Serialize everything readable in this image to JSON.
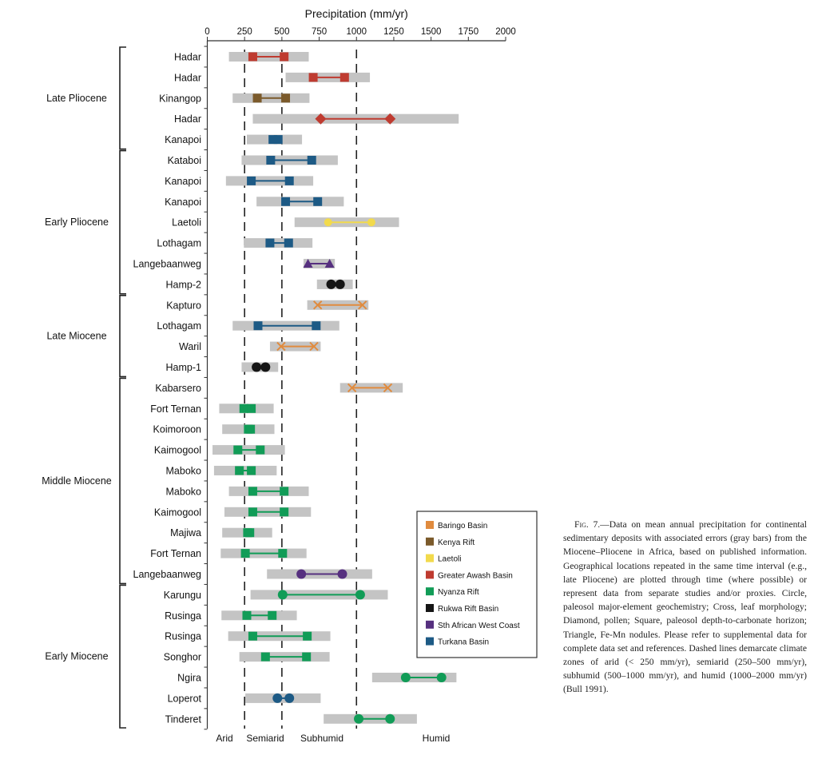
{
  "chart_data": {
    "type": "range-dot",
    "title": "Precipitation (mm/yr)",
    "xlabel": "Precipitation (mm/yr)",
    "xlim": [
      0,
      2000
    ],
    "xticks": [
      0,
      250,
      500,
      750,
      1000,
      1250,
      1500,
      1750,
      2000
    ],
    "xtick_labels": [
      "0",
      "250",
      "500",
      "750",
      "1000",
      "1250",
      "1500",
      "1750",
      "2000"
    ],
    "thresholds": [
      250,
      500,
      1000
    ],
    "zones": [
      "Arid",
      "Semiarid",
      "Subhumid",
      "Humid"
    ],
    "groups": [
      {
        "label": "Late Pliocene",
        "rows": [
          0,
          4
        ]
      },
      {
        "label": "Early Pliocene",
        "rows": [
          5,
          11
        ]
      },
      {
        "label": "Late Miocene",
        "rows": [
          12,
          15
        ]
      },
      {
        "label": "Middle Miocene",
        "rows": [
          16,
          25
        ]
      },
      {
        "label": "Early Miocene",
        "rows": [
          26,
          32
        ]
      }
    ],
    "legend": [
      {
        "name": "Baringo Basin",
        "color": "#e08b3e"
      },
      {
        "name": "Kenya Rift",
        "color": "#7b5a2b"
      },
      {
        "name": "Laetoli",
        "color": "#f2da4c"
      },
      {
        "name": "Greater Awash Basin",
        "color": "#bf3b30"
      },
      {
        "name": "Nyanza Rift",
        "color": "#119c57"
      },
      {
        "name": "Rukwa Rift Basin",
        "color": "#151515"
      },
      {
        "name": "Sth African West Coast",
        "color": "#56307f"
      },
      {
        "name": "Turkana Basin",
        "color": "#1d5a85"
      }
    ],
    "legend_position": "bottom-right",
    "rows": [
      {
        "site": "Hadar",
        "basin": 3,
        "marker": "square",
        "range": [
          145,
          680
        ],
        "points": [
          305,
          515
        ]
      },
      {
        "site": "Hadar",
        "basin": 3,
        "marker": "square",
        "range": [
          525,
          1090
        ],
        "points": [
          710,
          920
        ]
      },
      {
        "site": "Kinangop",
        "basin": 1,
        "marker": "square",
        "range": [
          170,
          685
        ],
        "points": [
          335,
          525
        ]
      },
      {
        "site": "Hadar",
        "basin": 3,
        "marker": "diamond",
        "range": [
          305,
          1685
        ],
        "points": [
          760,
          1225
        ]
      },
      {
        "site": "Kanapoi",
        "basin": 7,
        "marker": "square",
        "range": [
          265,
          635
        ],
        "points": [
          440,
          475
        ]
      },
      {
        "site": "Kataboi",
        "basin": 7,
        "marker": "square",
        "range": [
          230,
          875
        ],
        "points": [
          425,
          700
        ]
      },
      {
        "site": "Kanapoi",
        "basin": 7,
        "marker": "square",
        "range": [
          125,
          710
        ],
        "points": [
          295,
          550
        ]
      },
      {
        "site": "Kanapoi",
        "basin": 7,
        "marker": "square",
        "range": [
          330,
          915
        ],
        "points": [
          525,
          740
        ]
      },
      {
        "site": "Laetoli",
        "basin": 2,
        "marker": "circle-small",
        "range": [
          585,
          1285
        ],
        "points": [
          810,
          1100
        ]
      },
      {
        "site": "Lothagam",
        "basin": 7,
        "marker": "square",
        "range": [
          245,
          705
        ],
        "points": [
          420,
          545
        ]
      },
      {
        "site": "Langebaanweg",
        "basin": 6,
        "marker": "triangle",
        "range": [
          645,
          855
        ],
        "points": [
          675,
          820
        ]
      },
      {
        "site": "Hamp-2",
        "basin": 5,
        "marker": "circle",
        "range": [
          735,
          975
        ],
        "points": [
          830,
          890
        ]
      },
      {
        "site": "Kapturo",
        "basin": 0,
        "marker": "cross",
        "range": [
          670,
          1080
        ],
        "points": [
          740,
          1040
        ]
      },
      {
        "site": "Lothagam",
        "basin": 7,
        "marker": "square",
        "range": [
          170,
          885
        ],
        "points": [
          340,
          730
        ]
      },
      {
        "site": "Waril",
        "basin": 0,
        "marker": "cross",
        "range": [
          420,
          760
        ],
        "points": [
          495,
          715
        ]
      },
      {
        "site": "Hamp-1",
        "basin": 5,
        "marker": "circle",
        "range": [
          230,
          475
        ],
        "points": [
          330,
          390
        ]
      },
      {
        "site": "Kabarsero",
        "basin": 0,
        "marker": "cross",
        "range": [
          890,
          1310
        ],
        "points": [
          970,
          1210
        ]
      },
      {
        "site": "Fort Ternan",
        "basin": 4,
        "marker": "square",
        "range": [
          80,
          445
        ],
        "points": [
          245,
          295
        ]
      },
      {
        "site": "Koimoroon",
        "basin": 4,
        "marker": "square",
        "range": [
          100,
          450
        ],
        "points": [
          275,
          290
        ]
      },
      {
        "site": "Kaimogool",
        "basin": 4,
        "marker": "square",
        "range": [
          35,
          520
        ],
        "points": [
          205,
          355
        ]
      },
      {
        "site": "Maboko",
        "basin": 4,
        "marker": "square",
        "range": [
          45,
          465
        ],
        "points": [
          215,
          295
        ]
      },
      {
        "site": "Maboko",
        "basin": 4,
        "marker": "square",
        "range": [
          145,
          680
        ],
        "points": [
          305,
          515
        ]
      },
      {
        "site": "Kaimogool",
        "basin": 4,
        "marker": "square",
        "range": [
          115,
          695
        ],
        "points": [
          305,
          515
        ]
      },
      {
        "site": "Majiwa",
        "basin": 4,
        "marker": "square",
        "range": [
          100,
          435
        ],
        "points": [
          270,
          285
        ]
      },
      {
        "site": "Fort Ternan",
        "basin": 4,
        "marker": "square",
        "range": [
          90,
          665
        ],
        "points": [
          255,
          505
        ]
      },
      {
        "site": "Langebaanweg",
        "basin": 6,
        "marker": "circle",
        "range": [
          400,
          1105
        ],
        "points": [
          630,
          905
        ]
      },
      {
        "site": "Karungu",
        "basin": 4,
        "marker": "circle",
        "range": [
          290,
          1210
        ],
        "points": [
          505,
          1025
        ]
      },
      {
        "site": "Rusinga",
        "basin": 4,
        "marker": "square",
        "range": [
          95,
          600
        ],
        "points": [
          265,
          435
        ]
      },
      {
        "site": "Rusinga",
        "basin": 4,
        "marker": "square",
        "range": [
          140,
          825
        ],
        "points": [
          305,
          670
        ]
      },
      {
        "site": "Songhor",
        "basin": 4,
        "marker": "square",
        "range": [
          215,
          820
        ],
        "points": [
          390,
          665
        ]
      },
      {
        "site": "Ngira",
        "basin": 4,
        "marker": "circle",
        "range": [
          1105,
          1670
        ],
        "points": [
          1330,
          1570
        ]
      },
      {
        "site": "Loperot",
        "basin": 7,
        "marker": "circle",
        "range": [
          255,
          760
        ],
        "points": [
          470,
          550
        ]
      },
      {
        "site": "Tinderet",
        "basin": 4,
        "marker": "circle",
        "range": [
          780,
          1405
        ],
        "points": [
          1015,
          1225
        ]
      }
    ]
  },
  "caption": {
    "lead": "Fig. 7.",
    "text": "—Data on mean annual precipitation for continental sedimentary deposits with associated errors (gray bars) from the Miocene–Pliocene in Africa, based on published information. Geographical locations repeated in the same time interval (e.g., late Pliocene) are plotted through time (where possible) or represent data from separate studies and/or proxies. Circle, paleosol major-element geochemistry; Cross, leaf morphology; Diamond, pollen; Square, paleosol depth-to-carbonate horizon; Triangle, Fe-Mn nodules. Please refer to supplemental data for complete data set and references. Dashed lines demarcate climate zones of arid (< 250 mm/yr), semiarid (250–500 mm/yr), subhumid (500–1000 mm/yr), and humid (1000–2000 mm/yr) (Bull 1991)."
  }
}
